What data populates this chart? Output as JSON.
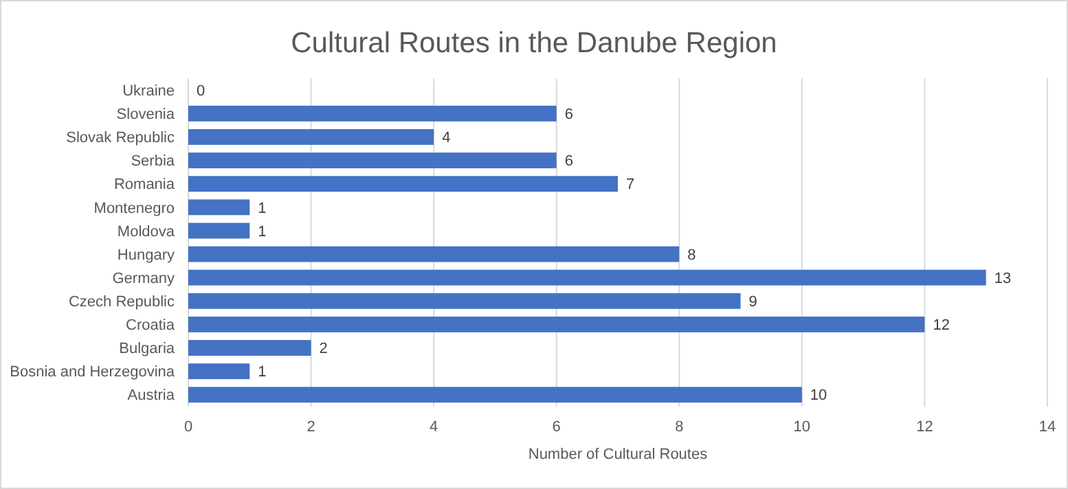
{
  "chart_data": {
    "type": "bar",
    "orientation": "horizontal",
    "title": "Cultural Routes in the Danube Region",
    "xlabel": "Number of Cultural Routes",
    "categories": [
      "Ukraine",
      "Slovenia",
      "Slovak Republic",
      "Serbia",
      "Romania",
      "Montenegro",
      "Moldova",
      "Hungary",
      "Germany",
      "Czech Republic",
      "Croatia",
      "Bulgaria",
      "Bosnia and Herzegovina",
      "Austria"
    ],
    "values": [
      0,
      6,
      4,
      6,
      7,
      1,
      1,
      8,
      13,
      9,
      12,
      2,
      1,
      10
    ],
    "color": "#4472c4",
    "xlim": [
      0,
      14
    ],
    "xticks": [
      0,
      2,
      4,
      6,
      8,
      10,
      12,
      14
    ],
    "grid": "x",
    "data_labels": true
  }
}
